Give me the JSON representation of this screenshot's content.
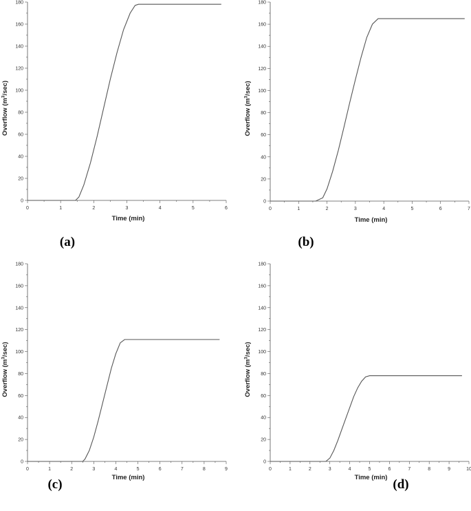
{
  "chart_data": [
    {
      "panel_label": "(a)",
      "type": "line",
      "xlabel": "Time (min)",
      "ylabel": "Overflow (m³/sec)",
      "ylabel_main": "Overflow (m",
      "ylabel_sup": "3",
      "ylabel_tail": "/sec)",
      "xlim": [
        0,
        6
      ],
      "ylim": [
        0,
        180
      ],
      "xticks": [
        0,
        1,
        2,
        3,
        4,
        5,
        6
      ],
      "yticks": [
        0,
        20,
        40,
        60,
        80,
        100,
        120,
        140,
        160,
        180
      ],
      "grid": false,
      "series": [
        {
          "x": [
            0,
            1.45,
            1.55,
            1.7,
            1.9,
            2.1,
            2.3,
            2.5,
            2.7,
            2.9,
            3.1,
            3.25,
            3.35,
            4.0,
            5.0,
            5.85
          ],
          "y": [
            0,
            0,
            3,
            14,
            34,
            58,
            84,
            110,
            134,
            155,
            170,
            177,
            178,
            178,
            178,
            178
          ]
        }
      ]
    },
    {
      "panel_label": "(b)",
      "type": "line",
      "xlabel": "Time (min)",
      "ylabel": "Overflow (m³/sec)",
      "ylabel_main": "Overflow (m",
      "ylabel_sup": "3",
      "ylabel_tail": "/sec)",
      "xlim": [
        0,
        7
      ],
      "ylim": [
        0,
        180
      ],
      "xticks": [
        0,
        1,
        2,
        3,
        4,
        5,
        6,
        7
      ],
      "yticks": [
        0,
        20,
        40,
        60,
        80,
        100,
        120,
        140,
        160,
        180
      ],
      "grid": false,
      "series": [
        {
          "x": [
            0,
            1.6,
            1.85,
            2.0,
            2.2,
            2.4,
            2.6,
            2.8,
            3.0,
            3.2,
            3.4,
            3.6,
            3.8,
            4.0,
            5.0,
            6.0,
            6.85
          ],
          "y": [
            0,
            0,
            3,
            11,
            27,
            46,
            67,
            89,
            110,
            130,
            148,
            160,
            165,
            165,
            165,
            165,
            165
          ]
        }
      ]
    },
    {
      "panel_label": "(c)",
      "type": "line",
      "xlabel": "Time (min)",
      "ylabel": "Overflow (m³/sec)",
      "ylabel_main": "Overflow (m",
      "ylabel_sup": "3",
      "ylabel_tail": "/sec)",
      "xlim": [
        0,
        9
      ],
      "ylim": [
        0,
        180
      ],
      "xticks": [
        0,
        1,
        2,
        3,
        4,
        5,
        6,
        7,
        8,
        9
      ],
      "yticks": [
        0,
        20,
        40,
        60,
        80,
        100,
        120,
        140,
        160,
        180
      ],
      "grid": false,
      "series": [
        {
          "x": [
            0,
            2.5,
            2.6,
            2.8,
            3.0,
            3.2,
            3.4,
            3.6,
            3.8,
            4.0,
            4.2,
            4.4,
            4.6,
            5.0,
            6.0,
            7.0,
            8.0,
            8.7
          ],
          "y": [
            0,
            0,
            2,
            10,
            22,
            37,
            53,
            69,
            85,
            98,
            108,
            111,
            111,
            111,
            111,
            111,
            111,
            111
          ]
        }
      ]
    },
    {
      "panel_label": "(d)",
      "type": "line",
      "xlabel": "Time (min)",
      "ylabel": "Overflow (m³/sec)",
      "ylabel_main": "Overflow (m",
      "ylabel_sup": "3",
      "ylabel_tail": "/sec)",
      "xlim": [
        0,
        10
      ],
      "ylim": [
        0,
        180
      ],
      "xticks": [
        0,
        1,
        2,
        3,
        4,
        5,
        6,
        7,
        8,
        9,
        10
      ],
      "yticks": [
        0,
        20,
        40,
        60,
        80,
        100,
        120,
        140,
        160,
        180
      ],
      "grid": false,
      "series": [
        {
          "x": [
            0,
            2.8,
            3.0,
            3.2,
            3.4,
            3.6,
            3.8,
            4.0,
            4.2,
            4.4,
            4.6,
            4.8,
            5.0,
            6.0,
            7.0,
            8.0,
            9.0,
            9.65
          ],
          "y": [
            0,
            0,
            3,
            10,
            19,
            29,
            39,
            49,
            59,
            67,
            73,
            77,
            78,
            78,
            78,
            78,
            78,
            78
          ]
        }
      ]
    }
  ]
}
